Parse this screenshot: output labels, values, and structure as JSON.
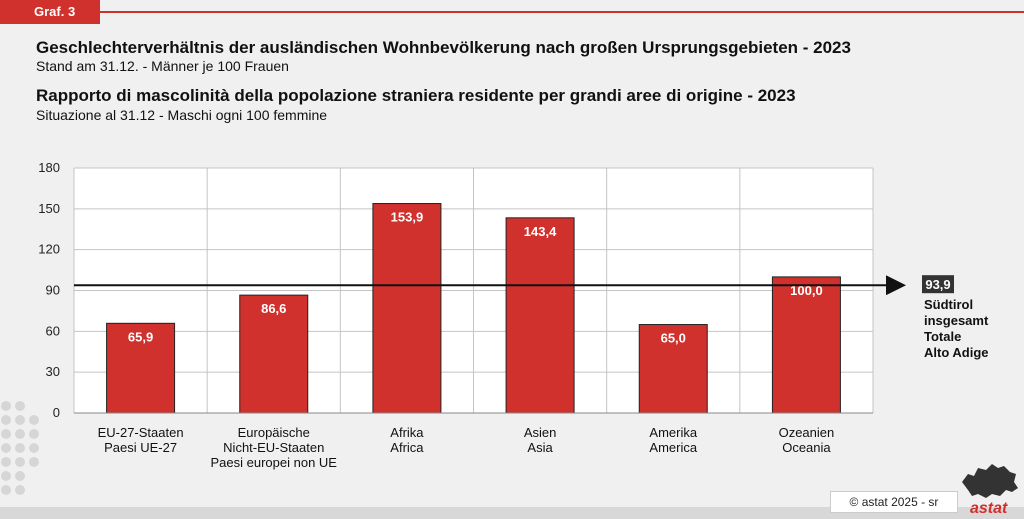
{
  "header": {
    "tag": "Graf. 3",
    "title_de": "Geschlechterverhältnis der ausländischen Wohnbevölkerung nach großen Ursprungsgebieten - 2023",
    "subtitle_de": "Stand am 31.12. - Männer je 100 Frauen",
    "title_it": "Rapporto di mascolinità della popolazione straniera residente per grandi aree di origine - 2023",
    "subtitle_it": "Situazione al 31.12 - Maschi ogni 100 femmine"
  },
  "chart_data": {
    "type": "bar",
    "categories": [
      [
        "EU-27-Staaten",
        "Paesi UE-27"
      ],
      [
        "Europäische",
        "Nicht-EU-Staaten",
        "Paesi europei non UE"
      ],
      [
        "Afrika",
        "Africa"
      ],
      [
        "Asien",
        "Asia"
      ],
      [
        "Amerika",
        "America"
      ],
      [
        "Ozeanien",
        "Oceania"
      ]
    ],
    "values": [
      65.9,
      86.6,
      153.9,
      143.4,
      65.0,
      100.0
    ],
    "value_labels": [
      "65,9",
      "86,6",
      "153,9",
      "143,4",
      "65,0",
      "100,0"
    ],
    "ylim": [
      0,
      180
    ],
    "yticks": [
      0,
      30,
      60,
      90,
      120,
      150,
      180
    ],
    "grid": true,
    "bar_color": "#d0312d",
    "reference": {
      "value": 93.9,
      "value_label": "93,9",
      "label_lines": [
        "Südtirol",
        "insgesamt",
        "Totale",
        "Alto Adige"
      ]
    }
  },
  "footer": {
    "copyright": "© astat 2025 - sr",
    "logo": "astat"
  },
  "colors": {
    "accent": "#d0312d",
    "background": "#f0f0f0"
  }
}
